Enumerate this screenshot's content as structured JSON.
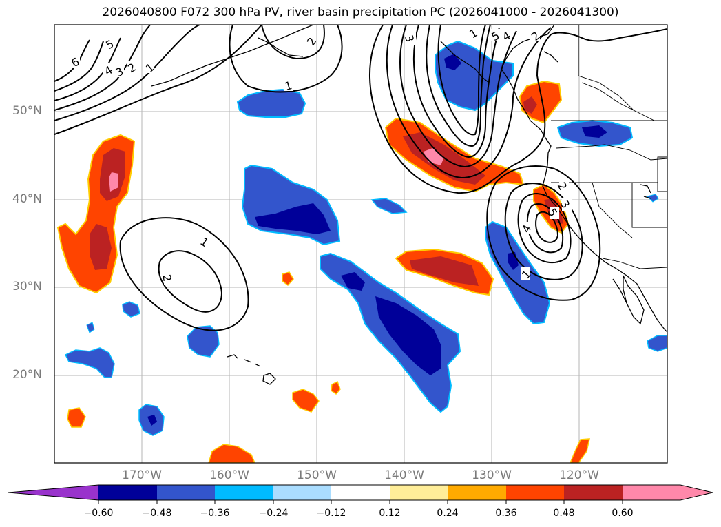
{
  "title": "2026040800 F072 300 hPa PV, river basin precipitation PC (2026041000 - 2026041300)",
  "map": {
    "lat_labels": [
      "50°N",
      "40°N",
      "30°N",
      "20°N"
    ],
    "lon_labels": [
      "170°W",
      "160°W",
      "150°W",
      "140°W",
      "130°W",
      "120°W"
    ],
    "contour_labels": [
      "6",
      "5",
      "4",
      "3",
      "2",
      "1",
      "2",
      "1",
      "3",
      "5",
      "4",
      "2",
      "1",
      "2",
      "3",
      "5",
      "4",
      "1",
      "1",
      "2"
    ]
  },
  "colorbar": {
    "colors": [
      "#9933cc",
      "#000099",
      "#3355cc",
      "#00bbff",
      "#aaddff",
      "#ffffff",
      "#ffee99",
      "#ffaa00",
      "#ff4400",
      "#bb2222",
      "#ff88aa"
    ],
    "ticks": [
      "−0.60",
      "−0.48",
      "−0.36",
      "−0.24",
      "−0.12",
      "0.12",
      "0.24",
      "0.36",
      "0.48",
      "0.60"
    ]
  }
}
